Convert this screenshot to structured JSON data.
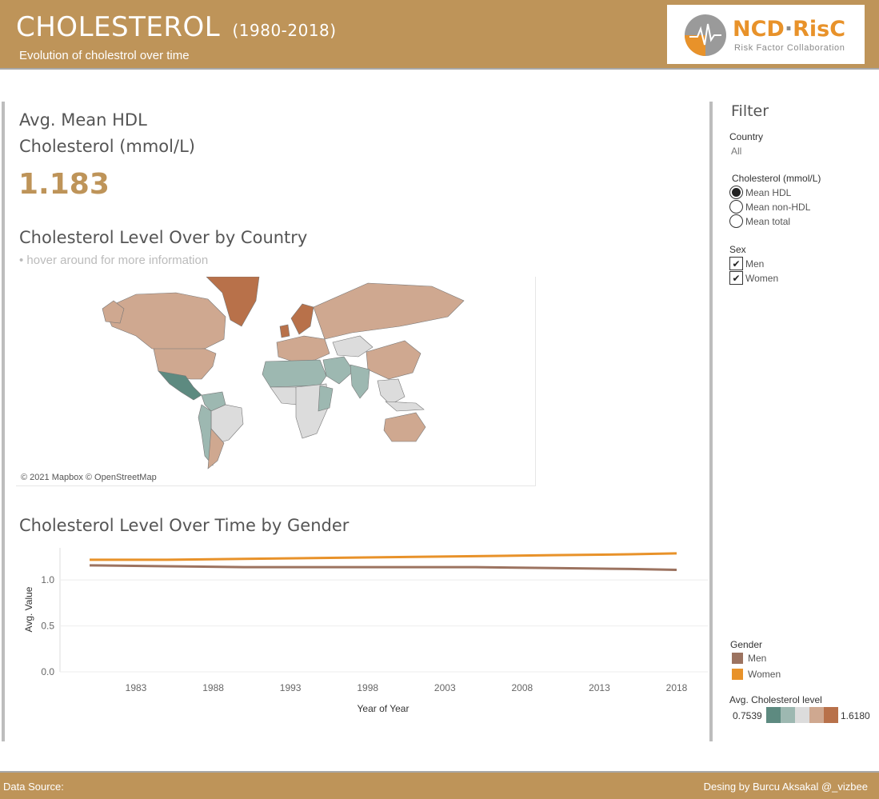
{
  "header": {
    "title": "CHOLESTEROL",
    "years": "(1980-2018)",
    "subtitle": "Evolution of cholestrol over time",
    "logo": {
      "name_a": "NCD",
      "sep": "·",
      "name_b": "RisC",
      "tagline": "Risk Factor Collaboration"
    }
  },
  "kpi": {
    "label_line1": "Avg. Mean HDL",
    "label_line2": "Cholesterol (mmol/L)",
    "value": "1.183"
  },
  "map_section": {
    "title": "Cholesterol Level Over by Country",
    "hint": "• hover around for more information",
    "attribution": "© 2021 Mapbox © OpenStreetMap"
  },
  "line_section": {
    "title": "Cholesterol Level Over Time by Gender"
  },
  "filter": {
    "title": "Filter",
    "country_label": "Country",
    "country_value": "All",
    "chol_label": "Cholesterol (mmol/L)",
    "chol_options": [
      {
        "label": "Mean HDL",
        "selected": true
      },
      {
        "label": "Mean non-HDL",
        "selected": false
      },
      {
        "label": "Mean total",
        "selected": false
      }
    ],
    "sex_label": "Sex",
    "sex_options": [
      {
        "label": "Men",
        "checked": true
      },
      {
        "label": "Women",
        "checked": true
      }
    ]
  },
  "legend": {
    "gender_label": "Gender",
    "men": "Men",
    "women": "Women",
    "level_label": "Avg. Cholesterol level",
    "min": "0.7539",
    "max": "1.6180"
  },
  "colors": {
    "accent": "#be9459",
    "men": "#9c7360",
    "women": "#e8922a",
    "scale": [
      "#5d8a80",
      "#9db8b1",
      "#dcdcdc",
      "#cfa890",
      "#b8714a"
    ]
  },
  "footer": {
    "left": "Data Source:",
    "right": "Desing by Burcu Aksakal @_vizbee"
  },
  "chart_data": {
    "type": "line",
    "xlabel": "Year of Year",
    "ylabel": "Avg. Value",
    "x_ticks": [
      "1983",
      "1988",
      "1993",
      "1998",
      "2003",
      "2008",
      "2013",
      "2018"
    ],
    "y_ticks": [
      "0.0",
      "0.5",
      "1.0"
    ],
    "ylim": [
      0,
      1.35
    ],
    "xlim": [
      1980,
      2018
    ],
    "grid": true,
    "series": [
      {
        "name": "Men",
        "x": [
          1980,
          1985,
          1990,
          1995,
          2000,
          2005,
          2010,
          2015,
          2018
        ],
        "values": [
          1.16,
          1.15,
          1.14,
          1.14,
          1.14,
          1.14,
          1.13,
          1.12,
          1.11
        ]
      },
      {
        "name": "Women",
        "x": [
          1980,
          1985,
          1990,
          1995,
          2000,
          2005,
          2010,
          2015,
          2018
        ],
        "values": [
          1.22,
          1.22,
          1.23,
          1.24,
          1.25,
          1.26,
          1.27,
          1.28,
          1.29
        ]
      }
    ]
  }
}
